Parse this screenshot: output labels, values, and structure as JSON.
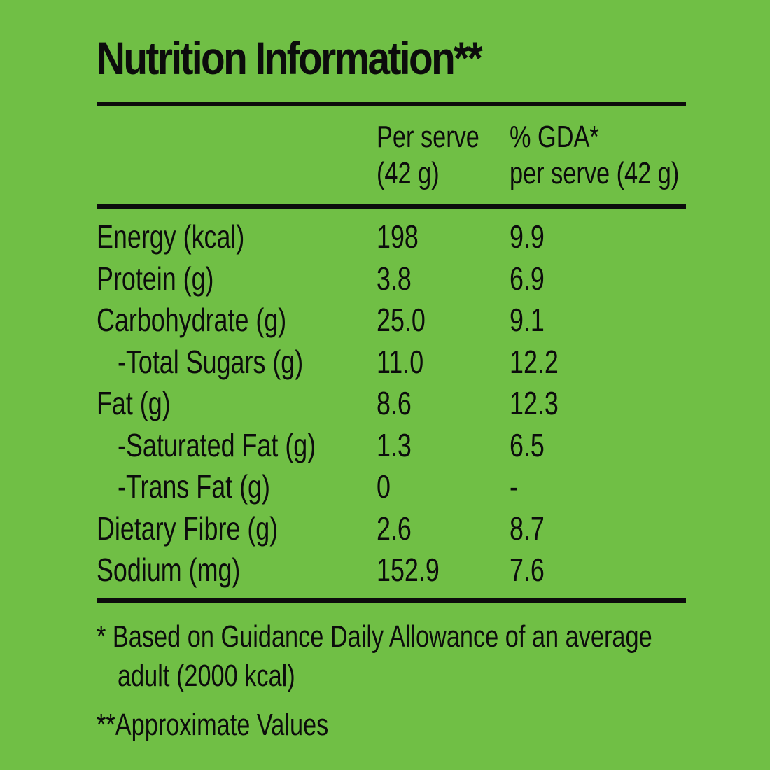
{
  "title": "Nutrition Information**",
  "headers": {
    "per_serve_line1": "Per serve",
    "per_serve_line2": "(42 g)",
    "gda_line1": "% GDA*",
    "gda_line2": "per serve (42 g)"
  },
  "rows": [
    {
      "name": "Energy (kcal)",
      "per_serve": "198",
      "gda": "9.9"
    },
    {
      "name": "Protein (g)",
      "per_serve": "3.8",
      "gda": "6.9"
    },
    {
      "name": "Carbohydrate (g)",
      "per_serve": "25.0",
      "gda": "9.1"
    },
    {
      "name": "-Total Sugars (g)",
      "per_serve": "11.0",
      "gda": "12.2"
    },
    {
      "name": "Fat (g)",
      "per_serve": "8.6",
      "gda": "12.3"
    },
    {
      "name": "-Saturated Fat (g)",
      "per_serve": "1.3",
      "gda": "6.5"
    },
    {
      "name": "-Trans Fat (g)",
      "per_serve": "0",
      "gda": "-"
    },
    {
      "name": "Dietary Fibre (g)",
      "per_serve": "2.6",
      "gda": "8.7"
    },
    {
      "name": "Sodium (mg)",
      "per_serve": "152.9",
      "gda": "7.6"
    }
  ],
  "footnotes": {
    "gda_note_line1": "* Based on Guidance Daily Allowance of an average",
    "gda_note_line2": "adult (2000 kcal)",
    "approx_note": "**Approximate Values"
  },
  "colors": {
    "background": "#70bf45",
    "text": "#0c0c0c"
  }
}
